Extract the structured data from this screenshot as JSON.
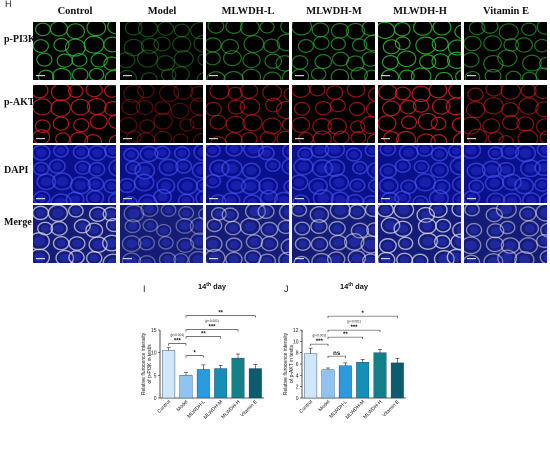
{
  "panel_h_label": "H",
  "columns": [
    "Control",
    "Model",
    "MLWDH-L",
    "MLWDH-M",
    "MLWDH-H",
    "Vitamin E"
  ],
  "rows": [
    "p-PI3K",
    "p-AKT",
    "DAPI",
    "Merge"
  ],
  "channel_colors": {
    "p-PI3K": "#2fb82f",
    "p-AKT": "#d42020",
    "DAPI": "#2a3ae0",
    "Merge": "#3a44c8"
  },
  "column_intensity": [
    0.95,
    0.25,
    0.6,
    0.7,
    1.0,
    0.6
  ],
  "chart_data": [
    {
      "type": "bar",
      "panel_label": "I",
      "title": "14th day",
      "title_base": "14",
      "title_sup": "th",
      "title_rest": " day",
      "ylabel_line1": "Relative flurocence  intensity",
      "ylabel_line2": "of  p-PI3K in testis",
      "categories": [
        "Control",
        "Model",
        "MLWDH-L",
        "MLWDH-M",
        "MLWDH-H",
        "Vitamin E"
      ],
      "values": [
        10.5,
        5.0,
        6.3,
        6.5,
        8.8,
        6.5
      ],
      "errors": [
        0.6,
        0.6,
        1.0,
        0.7,
        0.9,
        0.9
      ],
      "ylim": [
        0,
        15
      ],
      "yticks": [
        0,
        5,
        10,
        15
      ],
      "colors": [
        "#cfe6fb",
        "#8ec4ef",
        "#2b9be0",
        "#168fb6",
        "#137f86",
        "#0d5c6e"
      ],
      "annotations": [
        {
          "from": 0,
          "to": 1,
          "label": "***",
          "level": 0
        },
        {
          "from": 0,
          "to": 1,
          "label": "(p<0.001)",
          "level": 1,
          "small": true
        },
        {
          "from": 1,
          "to": 2,
          "label": "*",
          "level": 0
        },
        {
          "from": 1,
          "to": 3,
          "label": "**",
          "level": 1
        },
        {
          "from": 1,
          "to": 4,
          "label": "***",
          "level": 2
        },
        {
          "from": 1,
          "to": 4,
          "label": "(p<0.001)",
          "level": 3,
          "small": true
        },
        {
          "from": 1,
          "to": 5,
          "label": "**",
          "level": 4
        }
      ]
    },
    {
      "type": "bar",
      "panel_label": "J",
      "title": "14th day",
      "title_base": "14",
      "title_sup": "th",
      "title_rest": " day",
      "ylabel_line1": "Relative flurocence  intensity",
      "ylabel_line2": "of  p-AKT in testis",
      "categories": [
        "Control",
        "Model",
        "MLWDH-L",
        "MLWDH-M",
        "MLWDH-H",
        "Vitamin E"
      ],
      "values": [
        7.8,
        5.0,
        5.7,
        6.3,
        8.0,
        6.2
      ],
      "errors": [
        1.0,
        0.3,
        0.5,
        0.5,
        0.6,
        0.8
      ],
      "ylim": [
        0,
        12
      ],
      "yticks": [
        0,
        2,
        4,
        6,
        8,
        10,
        12
      ],
      "colors": [
        "#cfe6fb",
        "#8ec4ef",
        "#2b9be0",
        "#168fb6",
        "#137f86",
        "#0d5c6e"
      ],
      "annotations": [
        {
          "from": 0,
          "to": 1,
          "label": "***",
          "level": 0
        },
        {
          "from": 0,
          "to": 1,
          "label": "(p<0.001)",
          "level": 1,
          "small": true
        },
        {
          "from": 1,
          "to": 2,
          "label": "ns",
          "level": 0
        },
        {
          "from": 1,
          "to": 3,
          "label": "**",
          "level": 1
        },
        {
          "from": 1,
          "to": 4,
          "label": "***",
          "level": 2
        },
        {
          "from": 1,
          "to": 4,
          "label": "(p<0.001)",
          "level": 3,
          "small": true
        },
        {
          "from": 1,
          "to": 5,
          "label": "*",
          "level": 4
        }
      ]
    }
  ]
}
